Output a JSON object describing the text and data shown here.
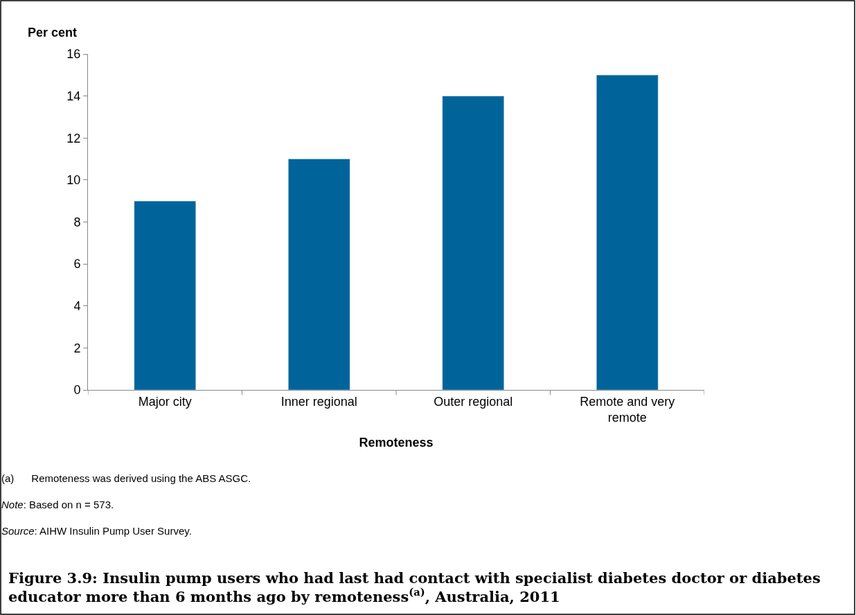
{
  "chart_data": {
    "type": "bar",
    "title": "Figure 3.9: Insulin pump users who had last had contact with specialist diabetes doctor or diabetes educator more than 6 months ago by remoteness$^{(a)}$, Australia, 2011",
    "xlabel": "Remoteness",
    "ylabel": "Per cent",
    "categories": [
      "Major city",
      "Inner regional",
      "Outer regional",
      "Remote and very remote"
    ],
    "values": [
      9,
      11,
      14,
      15
    ],
    "color": "#00649a",
    "ylim": [
      0,
      16
    ],
    "yticks": [
      0,
      2,
      4,
      6,
      8,
      10,
      12,
      14,
      16
    ],
    "annotations": [
      "(a)      Remoteness was derived using the ABS ASGC.",
      "Note: Based on n = 573.",
      "Source: AIHW Insulin Pump User Survey."
    ]
  }
}
